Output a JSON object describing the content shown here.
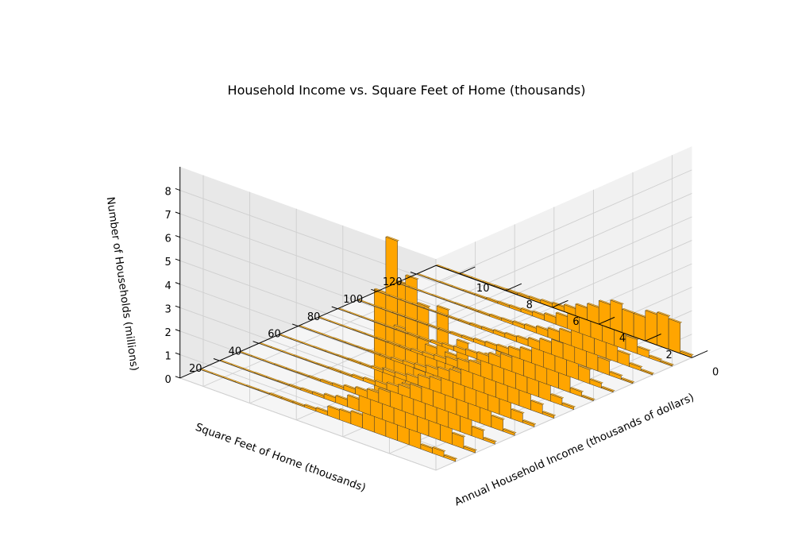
{
  "chart_data": {
    "type": "bar3d",
    "title": "Household Income vs. Square Feet of Home (thousands)",
    "xlabel": "Square Feet of Home (thousands)",
    "ylabel": "Annual Household Income (thousands of dollars)",
    "zlabel": "Number of Households (millions)",
    "x_ticks": [
      "0",
      "2",
      "4",
      "6",
      "8",
      "10"
    ],
    "y_ticks": [
      "20",
      "40",
      "60",
      "80",
      "100",
      "120"
    ],
    "z_ticks": [
      "0",
      "1",
      "2",
      "3",
      "4",
      "5",
      "6",
      "7",
      "8"
    ],
    "xlim": [
      0,
      11
    ],
    "ylim": [
      0,
      130
    ],
    "zlim": [
      0,
      9
    ],
    "bar_color": "#FFA500",
    "bar_edge_color": "#333333",
    "pane_color": "#F2F2F2",
    "grid": true,
    "bin_width": 0.5,
    "series": [
      {
        "y": 10,
        "values": [
          0.1,
          0.25,
          0.2,
          1.5,
          6.8,
          8.5,
          6.1,
          1.0,
          0.55,
          0.45,
          0.4,
          0.15,
          0.1,
          0.05,
          0.05,
          0.05,
          0.02,
          0.02,
          0.01,
          0.01,
          0.01,
          0.01
        ]
      },
      {
        "y": 20,
        "values": [
          0.1,
          0.5,
          1.0,
          1.5,
          5.5,
          6.5,
          4.2,
          2.2,
          1.1,
          0.7,
          0.5,
          0.3,
          0.2,
          0.1,
          0.08,
          0.05,
          0.03,
          0.02,
          0.02,
          0.01,
          0.01,
          0.01
        ]
      },
      {
        "y": 30,
        "values": [
          0.1,
          0.4,
          1.2,
          2.5,
          5.0,
          3.2,
          2.0,
          1.2,
          0.8,
          0.6,
          0.4,
          0.3,
          0.2,
          0.1,
          0.08,
          0.05,
          0.03,
          0.02,
          0.02,
          0.01,
          0.01,
          0.01
        ]
      },
      {
        "y": 40,
        "values": [
          0.1,
          0.5,
          1.5,
          2.2,
          3.2,
          2.5,
          1.5,
          1.0,
          0.6,
          0.4,
          0.3,
          0.2,
          0.15,
          0.1,
          0.05,
          0.05,
          0.03,
          0.02,
          0.02,
          0.01,
          0.01,
          0.01
        ]
      },
      {
        "y": 50,
        "values": [
          0.1,
          0.4,
          1.3,
          2.0,
          2.2,
          1.8,
          1.3,
          0.9,
          0.55,
          0.45,
          0.3,
          0.2,
          0.15,
          0.1,
          0.05,
          0.05,
          0.03,
          0.02,
          0.02,
          0.01,
          0.01,
          0.01
        ]
      },
      {
        "y": 60,
        "values": [
          0.1,
          0.4,
          1.2,
          1.9,
          2.0,
          1.7,
          1.2,
          0.85,
          0.5,
          0.4,
          0.3,
          0.2,
          0.15,
          0.1,
          0.05,
          0.05,
          0.03,
          0.02,
          0.02,
          0.01,
          0.01,
          0.01
        ]
      },
      {
        "y": 70,
        "values": [
          0.1,
          0.3,
          1.0,
          1.6,
          1.7,
          1.5,
          1.1,
          0.8,
          0.5,
          0.4,
          0.3,
          0.2,
          0.15,
          0.1,
          0.05,
          0.05,
          0.03,
          0.02,
          0.02,
          0.01,
          0.01,
          0.01
        ]
      },
      {
        "y": 80,
        "values": [
          0.05,
          0.2,
          0.8,
          1.3,
          1.3,
          1.1,
          0.9,
          0.6,
          0.45,
          0.3,
          0.25,
          0.2,
          0.15,
          0.1,
          0.05,
          0.05,
          0.03,
          0.02,
          0.02,
          0.01,
          0.01,
          0.01
        ]
      },
      {
        "y": 90,
        "values": [
          0.05,
          0.2,
          0.6,
          1.0,
          1.0,
          0.9,
          0.7,
          0.5,
          0.35,
          0.25,
          0.2,
          0.15,
          0.1,
          0.08,
          0.05,
          0.04,
          0.03,
          0.02,
          0.02,
          0.01,
          0.01,
          0.01
        ]
      },
      {
        "y": 100,
        "values": [
          0.05,
          0.15,
          0.6,
          0.9,
          0.85,
          0.8,
          0.65,
          0.5,
          0.35,
          0.25,
          0.2,
          0.15,
          0.1,
          0.08,
          0.05,
          0.04,
          0.03,
          0.02,
          0.02,
          0.01,
          0.01,
          0.01
        ]
      },
      {
        "y": 110,
        "values": [
          0.05,
          0.15,
          0.5,
          1.1,
          1.0,
          0.9,
          0.75,
          0.55,
          0.4,
          0.3,
          0.2,
          0.15,
          0.1,
          0.08,
          0.05,
          0.04,
          0.03,
          0.02,
          0.02,
          0.01,
          0.01,
          0.01
        ]
      },
      {
        "y": 120,
        "values": [
          0.05,
          0.1,
          0.3,
          0.6,
          0.8,
          1.1,
          0.9,
          0.95,
          0.7,
          0.5,
          0.3,
          0.2,
          0.15,
          0.1,
          0.08,
          0.06,
          0.04,
          0.03,
          0.02,
          0.02,
          0.01,
          0.01
        ]
      },
      {
        "y": 130,
        "values": [
          0.1,
          1.3,
          1.4,
          1.3,
          1.0,
          1.0,
          1.2,
          1.0,
          0.7,
          0.5,
          0.3,
          0.2,
          0.15,
          0.1,
          0.08,
          0.06,
          0.04,
          0.03,
          0.02,
          0.02,
          0.01,
          0.01
        ]
      }
    ]
  }
}
